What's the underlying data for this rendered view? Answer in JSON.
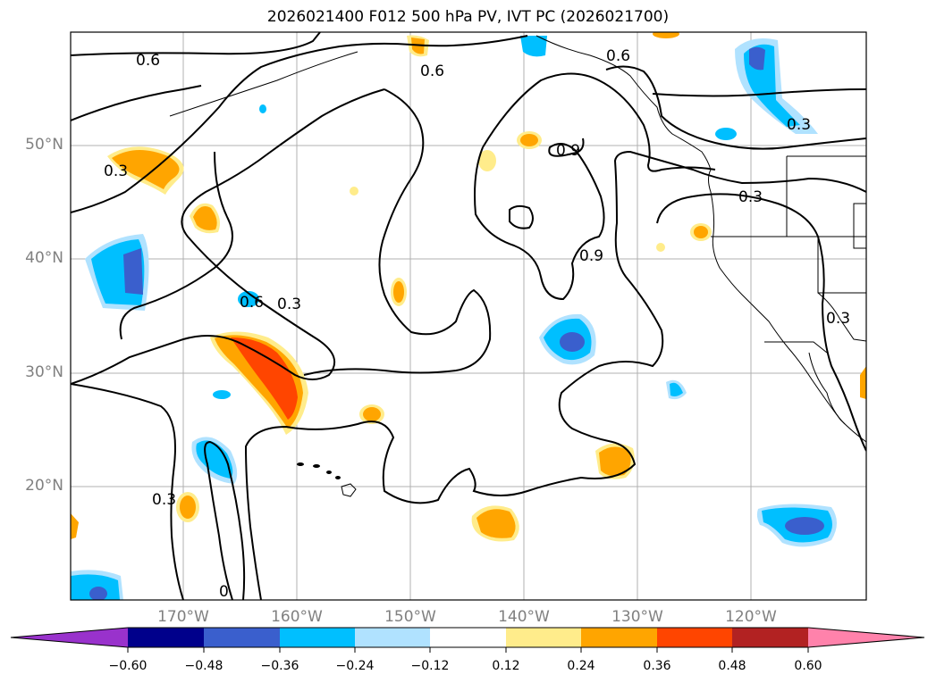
{
  "title": "2026021400 F012 500 hPa PV, IVT PC (2026021700)",
  "lat_labels": [
    "50°N",
    "40°N",
    "30°N",
    "20°N"
  ],
  "lon_labels": [
    "170°W",
    "160°W",
    "150°W",
    "140°W",
    "130°W",
    "120°W"
  ],
  "contour_labels": [
    "0.6",
    "0.6",
    "0.6",
    "0.3",
    "0.9",
    "0.9",
    "0.3",
    "0.6",
    "0.3",
    "0.3",
    "0.3",
    "0.3",
    "0"
  ],
  "colorbar": {
    "ticks": [
      "−0.60",
      "−0.48",
      "−0.36",
      "−0.24",
      "−0.12",
      "0.12",
      "0.24",
      "0.36",
      "0.48",
      "0.60"
    ],
    "colors": [
      "#9932cc",
      "#00008b",
      "#3a5fcd",
      "#00bfff",
      "#b0e2ff",
      "#ffffff",
      "#ffec8b",
      "#ffa500",
      "#ff4500",
      "#b22222",
      "#ff82ab"
    ]
  },
  "colors": {
    "neg_light": "#b0e2ff",
    "neg_mid": "#00bfff",
    "neg_dark": "#3a5fcd",
    "pos_light": "#ffec8b",
    "pos_mid": "#ffa500",
    "pos_dark": "#ff4500",
    "grid": "#b0b0b0"
  }
}
